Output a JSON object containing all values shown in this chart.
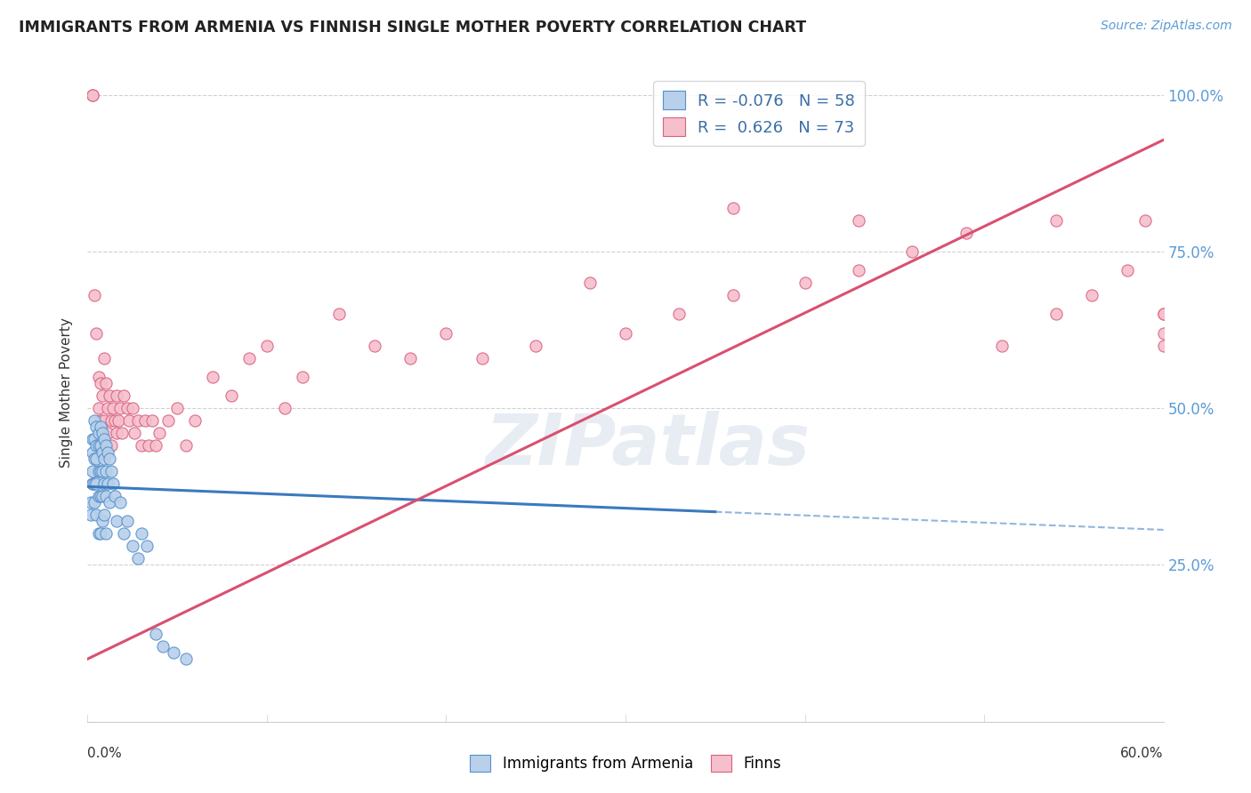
{
  "title": "IMMIGRANTS FROM ARMENIA VS FINNISH SINGLE MOTHER POVERTY CORRELATION CHART",
  "source": "Source: ZipAtlas.com",
  "ylabel": "Single Mother Poverty",
  "xlim": [
    0.0,
    0.6
  ],
  "ylim": [
    0.0,
    1.05
  ],
  "ytick_vals": [
    0.25,
    0.5,
    0.75,
    1.0
  ],
  "ytick_labels": [
    "25.0%",
    "50.0%",
    "75.0%",
    "100.0%"
  ],
  "legend_labels": [
    "Immigrants from Armenia",
    "Finns"
  ],
  "legend_r_values": [
    "-0.076",
    "0.626"
  ],
  "legend_n_values": [
    "58",
    "73"
  ],
  "blue_fill": "#b8d0ea",
  "blue_edge": "#5590cc",
  "pink_fill": "#f5bfcc",
  "pink_edge": "#d96080",
  "blue_line_color": "#3a7abf",
  "pink_line_color": "#d95070",
  "blue_line_solid_end": 0.35,
  "blue_intercept": 0.375,
  "blue_slope": -0.115,
  "pink_intercept": 0.1,
  "pink_slope": 1.38,
  "watermark_text": "ZIPatlas",
  "grid_color": "#d0d0d0",
  "blue_scatter_x": [
    0.002,
    0.002,
    0.003,
    0.003,
    0.003,
    0.003,
    0.004,
    0.004,
    0.004,
    0.004,
    0.004,
    0.005,
    0.005,
    0.005,
    0.005,
    0.005,
    0.006,
    0.006,
    0.006,
    0.006,
    0.006,
    0.007,
    0.007,
    0.007,
    0.007,
    0.007,
    0.008,
    0.008,
    0.008,
    0.008,
    0.008,
    0.009,
    0.009,
    0.009,
    0.009,
    0.01,
    0.01,
    0.01,
    0.01,
    0.011,
    0.011,
    0.012,
    0.012,
    0.013,
    0.014,
    0.015,
    0.016,
    0.018,
    0.02,
    0.022,
    0.025,
    0.028,
    0.03,
    0.033,
    0.038,
    0.042,
    0.048,
    0.055
  ],
  "blue_scatter_y": [
    0.35,
    0.33,
    0.45,
    0.43,
    0.4,
    0.38,
    0.48,
    0.45,
    0.42,
    0.38,
    0.35,
    0.47,
    0.44,
    0.42,
    0.38,
    0.33,
    0.46,
    0.44,
    0.4,
    0.36,
    0.3,
    0.47,
    0.44,
    0.4,
    0.36,
    0.3,
    0.46,
    0.43,
    0.4,
    0.36,
    0.32,
    0.45,
    0.42,
    0.38,
    0.33,
    0.44,
    0.4,
    0.36,
    0.3,
    0.43,
    0.38,
    0.42,
    0.35,
    0.4,
    0.38,
    0.36,
    0.32,
    0.35,
    0.3,
    0.32,
    0.28,
    0.26,
    0.3,
    0.28,
    0.14,
    0.12,
    0.11,
    0.1
  ],
  "pink_scatter_x": [
    0.003,
    0.003,
    0.004,
    0.005,
    0.006,
    0.006,
    0.007,
    0.007,
    0.008,
    0.009,
    0.009,
    0.01,
    0.011,
    0.011,
    0.012,
    0.013,
    0.013,
    0.014,
    0.015,
    0.016,
    0.016,
    0.017,
    0.018,
    0.019,
    0.02,
    0.022,
    0.023,
    0.025,
    0.026,
    0.028,
    0.03,
    0.032,
    0.034,
    0.036,
    0.038,
    0.04,
    0.045,
    0.05,
    0.055,
    0.06,
    0.07,
    0.08,
    0.09,
    0.1,
    0.11,
    0.12,
    0.14,
    0.16,
    0.18,
    0.2,
    0.22,
    0.25,
    0.28,
    0.3,
    0.33,
    0.36,
    0.4,
    0.43,
    0.46,
    0.49,
    0.51,
    0.54,
    0.56,
    0.58,
    0.59,
    0.6,
    0.6,
    0.6,
    0.003,
    0.6,
    0.54,
    0.43,
    0.36
  ],
  "pink_scatter_y": [
    1.0,
    1.0,
    0.68,
    0.62,
    0.55,
    0.5,
    0.54,
    0.48,
    0.52,
    0.58,
    0.48,
    0.54,
    0.5,
    0.46,
    0.52,
    0.48,
    0.44,
    0.5,
    0.48,
    0.52,
    0.46,
    0.48,
    0.5,
    0.46,
    0.52,
    0.5,
    0.48,
    0.5,
    0.46,
    0.48,
    0.44,
    0.48,
    0.44,
    0.48,
    0.44,
    0.46,
    0.48,
    0.5,
    0.44,
    0.48,
    0.55,
    0.52,
    0.58,
    0.6,
    0.5,
    0.55,
    0.65,
    0.6,
    0.58,
    0.62,
    0.58,
    0.6,
    0.7,
    0.62,
    0.65,
    0.68,
    0.7,
    0.72,
    0.75,
    0.78,
    0.6,
    0.65,
    0.68,
    0.72,
    0.8,
    0.65,
    0.6,
    0.62,
    0.38,
    0.65,
    0.8,
    0.8,
    0.82
  ]
}
